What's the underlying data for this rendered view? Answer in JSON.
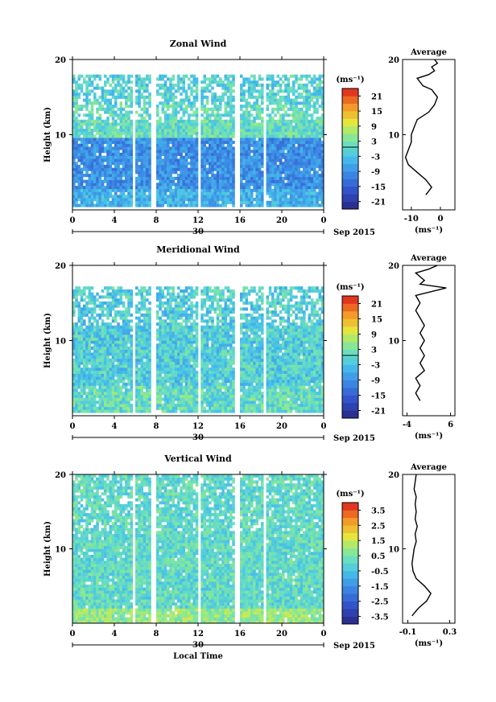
{
  "x_axis": {
    "ticks": [
      "0",
      "4",
      "8",
      "12",
      "16",
      "20",
      "0"
    ],
    "date_label": "30",
    "month_label": "Sep 2015",
    "xlabel": "Local Time"
  },
  "ylabel": "Height (km)",
  "y_ticks": [
    "20",
    "10"
  ],
  "unit": "(ms⁻¹)",
  "avg_unit": "(ms⁻¹)",
  "avg_title": "Average",
  "colors": {
    "low": "#2b2c8c",
    "mid_low": "#3fa0e8",
    "mid": "#6fe0c8",
    "mid_high": "#f0e040",
    "high": "#e02020"
  },
  "chart_data": [
    {
      "type": "heatmap",
      "title": "Zonal Wind",
      "ylabel": "Height (km)",
      "x_range": [
        0,
        24
      ],
      "y_range": [
        0,
        20
      ],
      "colorbar_ticks": [
        "21",
        "15",
        "9",
        "3",
        "-3",
        "-9",
        "-15",
        "-21"
      ],
      "colorbar_range": [
        -24,
        24
      ],
      "avg_profile": {
        "xlabel": "(ms⁻¹)",
        "x_ticks": [
          "-10",
          "0"
        ],
        "x_range": [
          -13,
          5
        ],
        "y_ticks": [
          "20",
          "10"
        ],
        "points": [
          [
            -5,
            2
          ],
          [
            -3,
            3
          ],
          [
            -5,
            4
          ],
          [
            -8,
            5
          ],
          [
            -11,
            6
          ],
          [
            -12,
            7
          ],
          [
            -11,
            8
          ],
          [
            -10,
            9
          ],
          [
            -10,
            10
          ],
          [
            -9,
            11
          ],
          [
            -8,
            12
          ],
          [
            -4,
            13
          ],
          [
            -2,
            14
          ],
          [
            -1,
            15
          ],
          [
            -3,
            16
          ],
          [
            -6,
            16.5
          ],
          [
            -8,
            17.5
          ],
          [
            -4,
            18
          ],
          [
            -2,
            18.5
          ],
          [
            -3,
            19
          ],
          [
            -1,
            19.5
          ],
          [
            -2,
            20
          ]
        ]
      }
    },
    {
      "type": "heatmap",
      "title": "Meridional Wind",
      "ylabel": "Height (km)",
      "x_range": [
        0,
        24
      ],
      "y_range": [
        0,
        20
      ],
      "colorbar_ticks": [
        "21",
        "15",
        "9",
        "3",
        "-3",
        "-9",
        "-15",
        "-21"
      ],
      "colorbar_range": [
        -24,
        24
      ],
      "avg_profile": {
        "xlabel": "(ms⁻¹)",
        "x_ticks": [
          "-4",
          "6"
        ],
        "x_range": [
          -5,
          7
        ],
        "y_ticks": [
          "20",
          "10"
        ],
        "points": [
          [
            -1,
            2
          ],
          [
            -2,
            3
          ],
          [
            -1,
            4
          ],
          [
            -2,
            5
          ],
          [
            0,
            6
          ],
          [
            -1,
            7
          ],
          [
            0,
            8
          ],
          [
            -1,
            9
          ],
          [
            0,
            10
          ],
          [
            -1,
            11
          ],
          [
            0,
            12
          ],
          [
            -1,
            13
          ],
          [
            -2,
            14
          ],
          [
            -1,
            15
          ],
          [
            -2,
            16
          ],
          [
            5,
            17
          ],
          [
            -1,
            17.5
          ],
          [
            0,
            18
          ],
          [
            -2,
            19
          ],
          [
            1,
            19.5
          ],
          [
            3,
            20
          ]
        ]
      }
    },
    {
      "type": "heatmap",
      "title": "Vertical Wind",
      "ylabel": "Height (km)",
      "xlabel": "Local Time",
      "x_range": [
        0,
        24
      ],
      "y_range": [
        0,
        20
      ],
      "colorbar_ticks": [
        "3.5",
        "2.5",
        "1.5",
        "0.5",
        "-0.5",
        "-1.5",
        "-2.5",
        "-3.5"
      ],
      "colorbar_range": [
        -4,
        4
      ],
      "avg_profile": {
        "xlabel": "(ms⁻¹)",
        "x_ticks": [
          "-0.1",
          "0.3"
        ],
        "x_range": [
          -0.15,
          0.35
        ],
        "y_ticks": [
          "20",
          "10"
        ],
        "points": [
          [
            -0.06,
            1
          ],
          [
            0.0,
            2
          ],
          [
            0.08,
            3
          ],
          [
            0.12,
            4
          ],
          [
            0.06,
            5
          ],
          [
            -0.02,
            6
          ],
          [
            -0.05,
            7
          ],
          [
            -0.06,
            8
          ],
          [
            -0.05,
            9
          ],
          [
            -0.04,
            10
          ],
          [
            -0.02,
            11
          ],
          [
            -0.03,
            12
          ],
          [
            -0.01,
            13
          ],
          [
            -0.03,
            14
          ],
          [
            -0.02,
            15
          ],
          [
            -0.03,
            16
          ],
          [
            -0.02,
            17
          ],
          [
            -0.04,
            18
          ],
          [
            -0.03,
            19
          ],
          [
            -0.02,
            20
          ]
        ]
      }
    }
  ]
}
